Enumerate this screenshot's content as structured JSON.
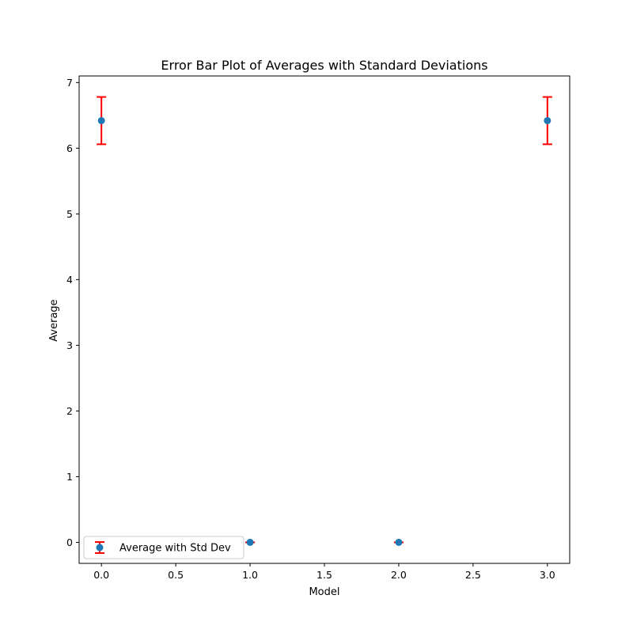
{
  "chart_data": {
    "type": "scatter",
    "title": "Error Bar Plot of Averages with Standard Deviations",
    "xlabel": "Model",
    "ylabel": "Average",
    "xlim": [
      -0.15,
      3.15
    ],
    "ylim": [
      -0.32,
      7.1
    ],
    "xticks": [
      0.0,
      0.5,
      1.0,
      1.5,
      2.0,
      2.5,
      3.0
    ],
    "xtick_labels": [
      "0.0",
      "0.5",
      "1.0",
      "1.5",
      "2.0",
      "2.5",
      "3.0"
    ],
    "yticks": [
      0,
      1,
      2,
      3,
      4,
      5,
      6,
      7
    ],
    "ytick_labels": [
      "0",
      "1",
      "2",
      "3",
      "4",
      "5",
      "6",
      "7"
    ],
    "grid": false,
    "legend_position": "lower-left",
    "series": [
      {
        "name": "Average with Std Dev",
        "x": [
          0,
          1,
          2,
          3
        ],
        "y": [
          6.42,
          0.0,
          0.0,
          6.42
        ],
        "err": [
          0.36,
          0.0,
          0.0,
          0.36
        ],
        "marker_color": "#1f77b4",
        "error_color": "#ff0000"
      }
    ]
  }
}
